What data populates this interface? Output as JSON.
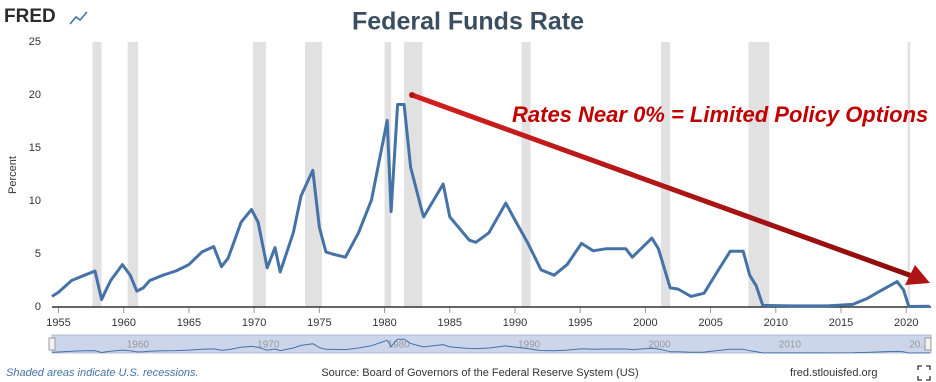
{
  "chart_data": {
    "type": "line",
    "logo": "FRED",
    "title": "Federal Funds Rate",
    "y_label": "Percent",
    "annotation": "Rates Near 0% = Limited Policy Options",
    "note": "Shaded areas indicate U.S. recessions.",
    "source": "Source: Board of Governors of the Federal Reserve System (US)",
    "site": "fred.stlouisfed.org",
    "x": [
      1954.5,
      1955,
      1956,
      1957,
      1957.8,
      1958.3,
      1958.6,
      1959,
      1959.9,
      1960.5,
      1961,
      1961.5,
      1962,
      1963,
      1964,
      1965,
      1966,
      1966.9,
      1967.5,
      1968,
      1969,
      1969.8,
      1970.3,
      1971,
      1971.6,
      1972,
      1973,
      1973.6,
      1974.5,
      1975,
      1975.5,
      1976,
      1977,
      1978,
      1979,
      1980.2,
      1980.5,
      1981,
      1981.5,
      1982,
      1982.9,
      1983,
      1984.5,
      1985,
      1986.5,
      1987,
      1988,
      1989.3,
      1990,
      1991,
      1992,
      1993,
      1994,
      1995.1,
      1996,
      1997,
      1998.5,
      1999,
      2000.5,
      2001,
      2001.9,
      2002.5,
      2003.5,
      2004.5,
      2005.5,
      2006.5,
      2007.5,
      2008,
      2008.5,
      2009,
      2011,
      2014,
      2015.9,
      2017,
      2018,
      2019.3,
      2019.8,
      2020.2,
      2021.8
    ],
    "series": [
      {
        "color": "#4572a7",
        "values": [
          1.0,
          1.4,
          2.5,
          3.0,
          3.4,
          0.7,
          1.5,
          2.5,
          4.0,
          3.0,
          1.5,
          1.8,
          2.5,
          3.0,
          3.4,
          4.0,
          5.2,
          5.7,
          3.8,
          4.6,
          8.0,
          9.2,
          8.0,
          3.7,
          5.6,
          3.3,
          7.0,
          10.5,
          12.9,
          7.5,
          5.2,
          5.0,
          4.7,
          7.0,
          10.1,
          17.6,
          9.0,
          19.1,
          19.1,
          13.2,
          8.9,
          8.5,
          11.6,
          8.5,
          6.3,
          6.1,
          7.0,
          9.8,
          8.2,
          6.0,
          3.5,
          3.0,
          4.0,
          6.0,
          5.3,
          5.5,
          5.5,
          4.7,
          6.5,
          5.5,
          1.8,
          1.7,
          1.0,
          1.3,
          3.3,
          5.25,
          5.25,
          3.0,
          2.0,
          0.15,
          0.1,
          0.1,
          0.25,
          0.8,
          1.5,
          2.4,
          1.6,
          0.05,
          0.08
        ]
      }
    ],
    "recessions": [
      [
        1957.6,
        1958.3
      ],
      [
        1960.3,
        1961.1
      ],
      [
        1969.9,
        1970.9
      ],
      [
        1973.9,
        1975.2
      ],
      [
        1980.0,
        1980.5
      ],
      [
        1981.5,
        1982.9
      ],
      [
        1990.5,
        1991.2
      ],
      [
        2001.2,
        2001.9
      ],
      [
        2007.9,
        2009.5
      ],
      [
        2020.1,
        2020.3
      ]
    ],
    "recession_color": "#e1e1e1",
    "xlim": [
      1954.5,
      2021.9
    ],
    "ylim": [
      0,
      25
    ],
    "xticks": [
      1955,
      1960,
      1965,
      1970,
      1975,
      1980,
      1985,
      1990,
      1995,
      2000,
      2005,
      2010,
      2015,
      2020
    ],
    "yticks": [
      0,
      5,
      10,
      15,
      20,
      25
    ],
    "grid": false,
    "navigator_ticks": [
      1960,
      1970,
      1980,
      1990,
      2000,
      2010,
      {
        "value": 2020,
        "label": "20..."
      }
    ]
  }
}
